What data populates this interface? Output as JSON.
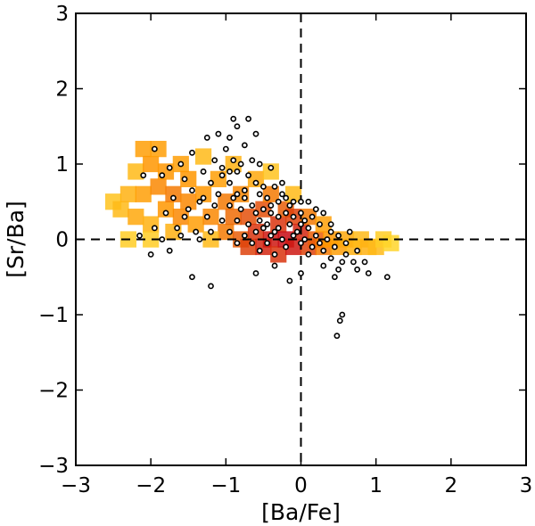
{
  "chart_data": {
    "type": "scatter",
    "title": "",
    "xlabel": "[Ba/Fe]",
    "ylabel": "[Sr/Ba]",
    "xlim": [
      -3,
      3
    ],
    "ylim": [
      -3,
      3
    ],
    "xticks": [
      "−3",
      "−2",
      "−1",
      "0",
      "1",
      "2",
      "3"
    ],
    "yticks": [
      "−3",
      "−2",
      "−1",
      "0",
      "1",
      "2",
      "3"
    ],
    "xtick_values": [
      -3,
      -2,
      -1,
      0,
      1,
      2,
      3
    ],
    "ytick_values": [
      -3,
      -2,
      -1,
      0,
      1,
      2,
      3
    ],
    "grid": false,
    "reference_lines": {
      "x": 0,
      "y": 0,
      "style": "dashed"
    },
    "colors": {
      "density_low": "#ffff33",
      "density_mid": "#ff8c00",
      "density_high": "#cc0000",
      "points": "#000000"
    },
    "density": [
      {
        "x": -2.5,
        "y": 0.5,
        "level": 0.25
      },
      {
        "x": -2.4,
        "y": 0.4,
        "level": 0.3
      },
      {
        "x": -2.3,
        "y": 0.6,
        "level": 0.35
      },
      {
        "x": -2.3,
        "y": 0.0,
        "level": 0.2
      },
      {
        "x": -2.2,
        "y": 0.9,
        "level": 0.3
      },
      {
        "x": -2.2,
        "y": 0.3,
        "level": 0.4
      },
      {
        "x": -2.1,
        "y": 1.2,
        "level": 0.45
      },
      {
        "x": -2.1,
        "y": 0.6,
        "level": 0.45
      },
      {
        "x": -2.0,
        "y": 1.0,
        "level": 0.5
      },
      {
        "x": -2.0,
        "y": 0.2,
        "level": 0.35
      },
      {
        "x": -1.9,
        "y": 0.7,
        "level": 0.55
      },
      {
        "x": -1.9,
        "y": 1.2,
        "level": 0.45
      },
      {
        "x": -1.8,
        "y": 0.4,
        "level": 0.5
      },
      {
        "x": -1.8,
        "y": 0.9,
        "level": 0.5
      },
      {
        "x": -1.7,
        "y": 0.1,
        "level": 0.35
      },
      {
        "x": -1.7,
        "y": 0.6,
        "level": 0.6
      },
      {
        "x": -1.6,
        "y": 1.0,
        "level": 0.45
      },
      {
        "x": -1.6,
        "y": 0.3,
        "level": 0.55
      },
      {
        "x": -1.5,
        "y": 0.5,
        "level": 0.55
      },
      {
        "x": -1.5,
        "y": 0.8,
        "level": 0.5
      },
      {
        "x": -1.4,
        "y": 0.2,
        "level": 0.45
      },
      {
        "x": -1.3,
        "y": 0.6,
        "level": 0.5
      },
      {
        "x": -1.3,
        "y": 1.1,
        "level": 0.3
      },
      {
        "x": -1.2,
        "y": 0.3,
        "level": 0.55
      },
      {
        "x": -1.1,
        "y": 0.8,
        "level": 0.45
      },
      {
        "x": -1.0,
        "y": 0.1,
        "level": 0.6
      },
      {
        "x": -1.0,
        "y": 0.5,
        "level": 0.6
      },
      {
        "x": -0.9,
        "y": 0.3,
        "level": 0.65
      },
      {
        "x": -0.9,
        "y": 1.0,
        "level": 0.35
      },
      {
        "x": -0.8,
        "y": 0.0,
        "level": 0.7
      },
      {
        "x": -0.8,
        "y": 0.6,
        "level": 0.55
      },
      {
        "x": -0.7,
        "y": -0.1,
        "level": 0.8
      },
      {
        "x": -0.7,
        "y": 0.3,
        "level": 0.75
      },
      {
        "x": -0.6,
        "y": 0.1,
        "level": 0.85
      },
      {
        "x": -0.6,
        "y": 0.8,
        "level": 0.4
      },
      {
        "x": -0.5,
        "y": -0.1,
        "level": 0.9
      },
      {
        "x": -0.5,
        "y": 0.4,
        "level": 0.75
      },
      {
        "x": -0.4,
        "y": 0.0,
        "level": 0.95
      },
      {
        "x": -0.4,
        "y": 0.6,
        "level": 0.6
      },
      {
        "x": -0.3,
        "y": 0.2,
        "level": 0.85
      },
      {
        "x": -0.3,
        "y": -0.2,
        "level": 0.85
      },
      {
        "x": -0.2,
        "y": 0.0,
        "level": 1.0
      },
      {
        "x": -0.2,
        "y": 0.4,
        "level": 0.7
      },
      {
        "x": -0.1,
        "y": -0.1,
        "level": 0.95
      },
      {
        "x": -0.1,
        "y": 0.3,
        "level": 0.8
      },
      {
        "x": 0.0,
        "y": 0.1,
        "level": 0.9
      },
      {
        "x": 0.1,
        "y": -0.1,
        "level": 0.8
      },
      {
        "x": 0.1,
        "y": 0.3,
        "level": 0.6
      },
      {
        "x": 0.2,
        "y": 0.0,
        "level": 0.7
      },
      {
        "x": 0.3,
        "y": -0.1,
        "level": 0.6
      },
      {
        "x": 0.3,
        "y": 0.2,
        "level": 0.45
      },
      {
        "x": 0.4,
        "y": 0.0,
        "level": 0.5
      },
      {
        "x": 0.5,
        "y": -0.1,
        "level": 0.45
      },
      {
        "x": 0.6,
        "y": 0.0,
        "level": 0.4
      },
      {
        "x": 0.7,
        "y": -0.1,
        "level": 0.35
      },
      {
        "x": 0.8,
        "y": 0.0,
        "level": 0.3
      },
      {
        "x": 0.9,
        "y": -0.1,
        "level": 0.35
      },
      {
        "x": 1.0,
        "y": -0.1,
        "level": 0.3
      },
      {
        "x": 1.1,
        "y": 0.0,
        "level": 0.2
      },
      {
        "x": 1.2,
        "y": -0.05,
        "level": 0.15
      },
      {
        "x": -0.1,
        "y": 0.6,
        "level": 0.3
      },
      {
        "x": -0.4,
        "y": 0.9,
        "level": 0.25
      },
      {
        "x": -1.2,
        "y": 0.0,
        "level": 0.3
      },
      {
        "x": -2.0,
        "y": 0.0,
        "level": 0.2
      }
    ],
    "points": [
      [
        -0.9,
        1.6
      ],
      [
        -0.7,
        1.6
      ],
      [
        -0.85,
        1.5
      ],
      [
        -1.1,
        1.4
      ],
      [
        -0.6,
        1.4
      ],
      [
        -1.25,
        1.35
      ],
      [
        -0.95,
        1.35
      ],
      [
        -1.0,
        1.2
      ],
      [
        -0.75,
        1.25
      ],
      [
        -1.45,
        1.15
      ],
      [
        -1.15,
        1.05
      ],
      [
        -0.9,
        1.05
      ],
      [
        -0.65,
        1.05
      ],
      [
        -0.55,
        1.0
      ],
      [
        -0.4,
        0.95
      ],
      [
        -1.6,
        1.0
      ],
      [
        -1.75,
        0.95
      ],
      [
        -1.3,
        0.9
      ],
      [
        -1.05,
        0.85
      ],
      [
        -0.85,
        0.9
      ],
      [
        -0.7,
        0.85
      ],
      [
        -1.95,
        1.2
      ],
      [
        -2.1,
        0.85
      ],
      [
        -1.85,
        0.85
      ],
      [
        -1.55,
        0.8
      ],
      [
        -1.2,
        0.75
      ],
      [
        -0.95,
        0.75
      ],
      [
        -0.6,
        0.75
      ],
      [
        -0.5,
        0.7
      ],
      [
        -0.35,
        0.7
      ],
      [
        -0.25,
        0.75
      ],
      [
        -1.45,
        0.65
      ],
      [
        -1.1,
        0.6
      ],
      [
        -0.85,
        0.6
      ],
      [
        -0.75,
        0.55
      ],
      [
        -0.55,
        0.6
      ],
      [
        -0.45,
        0.55
      ],
      [
        -0.3,
        0.5
      ],
      [
        -0.2,
        0.55
      ],
      [
        -0.1,
        0.5
      ],
      [
        0.0,
        0.5
      ],
      [
        0.1,
        0.5
      ],
      [
        -1.7,
        0.55
      ],
      [
        -1.35,
        0.5
      ],
      [
        -1.15,
        0.45
      ],
      [
        -0.95,
        0.45
      ],
      [
        -0.8,
        0.4
      ],
      [
        -0.65,
        0.45
      ],
      [
        -0.5,
        0.4
      ],
      [
        -0.4,
        0.35
      ],
      [
        -0.3,
        0.3
      ],
      [
        -0.2,
        0.35
      ],
      [
        -0.1,
        0.3
      ],
      [
        0.0,
        0.35
      ],
      [
        0.15,
        0.3
      ],
      [
        0.3,
        0.35
      ],
      [
        -1.8,
        0.35
      ],
      [
        -1.55,
        0.3
      ],
      [
        -1.25,
        0.3
      ],
      [
        -1.05,
        0.25
      ],
      [
        -0.85,
        0.25
      ],
      [
        -0.7,
        0.2
      ],
      [
        -0.55,
        0.25
      ],
      [
        -0.45,
        0.2
      ],
      [
        -0.3,
        0.15
      ],
      [
        -0.15,
        0.2
      ],
      [
        0.0,
        0.2
      ],
      [
        0.1,
        0.15
      ],
      [
        0.25,
        0.2
      ],
      [
        0.4,
        0.2
      ],
      [
        -1.95,
        0.15
      ],
      [
        -1.65,
        0.15
      ],
      [
        -1.4,
        0.1
      ],
      [
        -1.2,
        0.1
      ],
      [
        -0.95,
        0.1
      ],
      [
        -0.75,
        0.05
      ],
      [
        -0.6,
        0.1
      ],
      [
        -0.4,
        0.05
      ],
      [
        -0.25,
        0.0
      ],
      [
        -0.1,
        0.05
      ],
      [
        0.05,
        0.0
      ],
      [
        0.2,
        0.05
      ],
      [
        0.35,
        0.0
      ],
      [
        0.5,
        0.05
      ],
      [
        0.65,
        0.1
      ],
      [
        -2.15,
        0.05
      ],
      [
        -1.85,
        0.0
      ],
      [
        -1.6,
        0.05
      ],
      [
        -1.35,
        0.0
      ],
      [
        -0.85,
        -0.05
      ],
      [
        -0.65,
        -0.05
      ],
      [
        -0.45,
        -0.05
      ],
      [
        -0.2,
        -0.1
      ],
      [
        0.0,
        -0.05
      ],
      [
        0.15,
        -0.1
      ],
      [
        0.3,
        -0.15
      ],
      [
        0.45,
        -0.1
      ],
      [
        0.6,
        -0.2
      ],
      [
        0.75,
        -0.15
      ],
      [
        -2.0,
        -0.2
      ],
      [
        -1.75,
        -0.15
      ],
      [
        -0.55,
        -0.15
      ],
      [
        -0.35,
        -0.2
      ],
      [
        0.1,
        -0.2
      ],
      [
        0.4,
        -0.25
      ],
      [
        0.55,
        -0.3
      ],
      [
        0.7,
        -0.3
      ],
      [
        0.85,
        -0.3
      ],
      [
        0.3,
        -0.35
      ],
      [
        0.5,
        -0.4
      ],
      [
        0.75,
        -0.4
      ],
      [
        0.9,
        -0.45
      ],
      [
        1.15,
        -0.5
      ],
      [
        -0.35,
        -0.35
      ],
      [
        0.0,
        -0.45
      ],
      [
        0.45,
        -0.5
      ],
      [
        -1.45,
        -0.5
      ],
      [
        -1.2,
        -0.62
      ],
      [
        -0.6,
        -0.45
      ],
      [
        -0.15,
        -0.55
      ],
      [
        0.55,
        -1.0
      ],
      [
        0.52,
        -1.08
      ],
      [
        0.48,
        -1.28
      ],
      [
        -0.15,
        0.45
      ],
      [
        -0.25,
        0.6
      ],
      [
        -0.05,
        0.1
      ],
      [
        0.05,
        0.25
      ],
      [
        0.2,
        0.4
      ],
      [
        -0.4,
        0.45
      ],
      [
        -0.6,
        0.35
      ],
      [
        -0.75,
        0.65
      ],
      [
        -0.9,
        0.55
      ],
      [
        -0.35,
        0.1
      ],
      [
        -0.5,
        0.15
      ],
      [
        0.25,
        -0.05
      ],
      [
        0.6,
        -0.05
      ],
      [
        0.4,
        0.1
      ],
      [
        -1.05,
        0.95
      ],
      [
        -0.95,
        0.9
      ],
      [
        -0.8,
        1.0
      ],
      [
        -1.3,
        0.55
      ],
      [
        -1.5,
        0.4
      ]
    ]
  }
}
